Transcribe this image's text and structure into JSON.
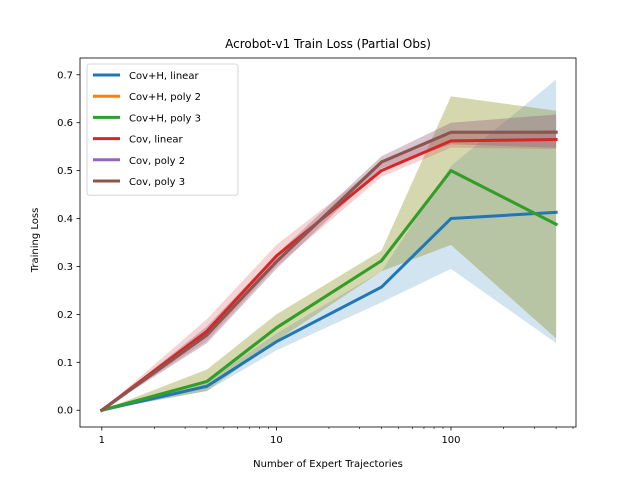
{
  "chart_data": {
    "type": "line",
    "title": "Acrobot-v1 Train Loss (Partial Obs)",
    "xlabel": "Number of Expert Trajectories",
    "ylabel": "Training Loss",
    "xscale": "log",
    "xlim": [
      0.75,
      520
    ],
    "ylim": [
      -0.035,
      0.735
    ],
    "x": [
      1,
      4,
      10,
      40,
      100,
      400
    ],
    "xticks": [
      1,
      10,
      100
    ],
    "xtick_labels": [
      "1",
      "10",
      "100"
    ],
    "yticks": [
      0.0,
      0.1,
      0.2,
      0.3,
      0.4,
      0.5,
      0.6,
      0.7
    ],
    "ytick_labels": [
      "0.0",
      "0.1",
      "0.2",
      "0.3",
      "0.4",
      "0.5",
      "0.6",
      "0.7"
    ],
    "grid": false,
    "legend_position": "top-left",
    "series": [
      {
        "name": "Cov+H, linear",
        "color": "#1f77b4",
        "values": [
          0.0,
          0.05,
          0.143,
          0.257,
          0.4,
          0.413
        ],
        "lower": [
          0.0,
          0.04,
          0.125,
          0.225,
          0.295,
          0.14
        ],
        "upper": [
          0.0,
          0.06,
          0.16,
          0.29,
          0.51,
          0.69
        ]
      },
      {
        "name": "Cov+H, poly 2",
        "color": "#ff7f0e",
        "values": [
          0.0,
          0.06,
          0.172,
          0.312,
          0.5,
          0.388
        ],
        "lower": [
          0.0,
          0.04,
          0.145,
          0.29,
          0.345,
          0.15
        ],
        "upper": [
          0.0,
          0.085,
          0.2,
          0.333,
          0.655,
          0.625
        ]
      },
      {
        "name": "Cov+H, poly 3",
        "color": "#2ca02c",
        "values": [
          0.0,
          0.06,
          0.172,
          0.312,
          0.5,
          0.388
        ],
        "lower": [
          0.0,
          0.04,
          0.145,
          0.29,
          0.345,
          0.15
        ],
        "upper": [
          0.0,
          0.085,
          0.2,
          0.333,
          0.655,
          0.625
        ]
      },
      {
        "name": "Cov, linear",
        "color": "#d62728",
        "values": [
          0.0,
          0.165,
          0.322,
          0.5,
          0.562,
          0.565
        ],
        "lower": [
          0.0,
          0.145,
          0.3,
          0.487,
          0.548,
          0.545
        ],
        "upper": [
          0.0,
          0.19,
          0.345,
          0.515,
          0.58,
          0.585
        ]
      },
      {
        "name": "Cov, poly 2",
        "color": "#9467bd",
        "values": [
          0.0,
          0.157,
          0.31,
          0.518,
          0.58,
          0.58
        ],
        "lower": [
          0.0,
          0.14,
          0.295,
          0.505,
          0.555,
          0.548
        ],
        "upper": [
          0.0,
          0.175,
          0.325,
          0.53,
          0.6,
          0.617
        ]
      },
      {
        "name": "Cov, poly 3",
        "color": "#8c564b",
        "values": [
          0.0,
          0.157,
          0.31,
          0.518,
          0.58,
          0.58
        ],
        "lower": [
          0.0,
          0.14,
          0.295,
          0.505,
          0.555,
          0.548
        ],
        "upper": [
          0.0,
          0.175,
          0.325,
          0.53,
          0.6,
          0.617
        ]
      }
    ]
  }
}
